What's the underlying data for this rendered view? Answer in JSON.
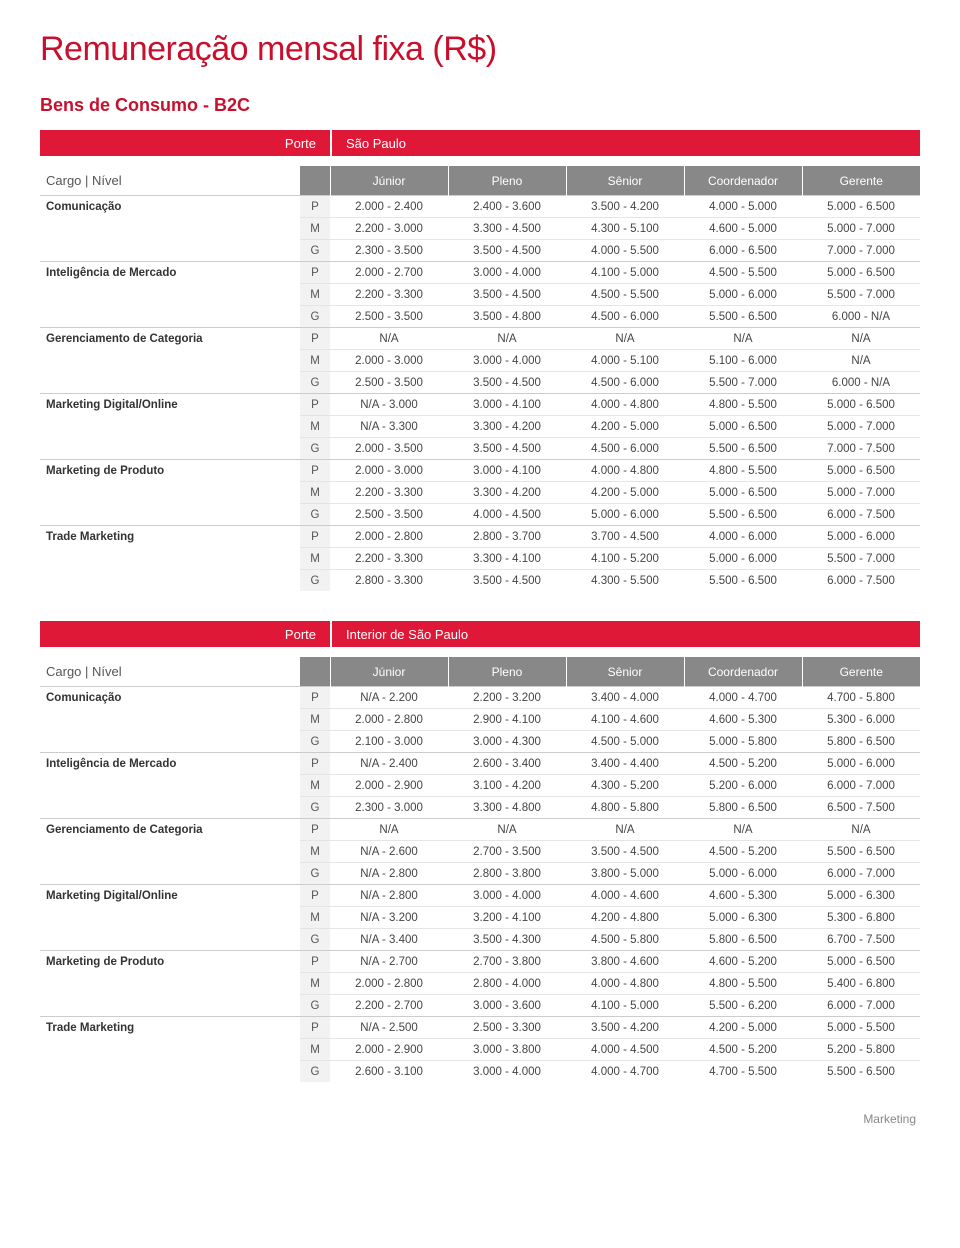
{
  "title": "Remuneração mensal fixa (R$)",
  "subtitle": "Bens de Consumo - B2C",
  "porte_label": "Porte",
  "cargo_nivel_label": "Cargo | Nível",
  "levels": [
    "Júnior",
    "Pleno",
    "Sênior",
    "Coordenador",
    "Gerente"
  ],
  "sizes": [
    "P",
    "M",
    "G"
  ],
  "footer": "Marketing",
  "colors": {
    "accent": "#c8102e",
    "bar": "#e01837",
    "header_bg": "#888888",
    "header_fg": "#ffffff",
    "size_bg": "#f2f2f2",
    "border": "#e5e5e5",
    "group_border": "#cccccc"
  },
  "tables": [
    {
      "region": "São Paulo",
      "cargos": [
        {
          "name": "Comunicação",
          "rows": [
            [
              "2.000 - 2.400",
              "2.400 - 3.600",
              "3.500 - 4.200",
              "4.000 - 5.000",
              "5.000 - 6.500"
            ],
            [
              "2.200 - 3.000",
              "3.300 - 4.500",
              "4.300 - 5.100",
              "4.600 - 5.000",
              "5.000 - 7.000"
            ],
            [
              "2.300 - 3.500",
              "3.500 - 4.500",
              "4.000 - 5.500",
              "6.000 - 6.500",
              "7.000 - 7.000"
            ]
          ]
        },
        {
          "name": "Inteligência de Mercado",
          "rows": [
            [
              "2.000 - 2.700",
              "3.000 - 4.000",
              "4.100 - 5.000",
              "4.500 - 5.500",
              "5.000 - 6.500"
            ],
            [
              "2.200 - 3.300",
              "3.500 - 4.500",
              "4.500 - 5.500",
              "5.000 - 6.000",
              "5.500 - 7.000"
            ],
            [
              "2.500 - 3.500",
              "3.500 - 4.800",
              "4.500 - 6.000",
              "5.500 - 6.500",
              "6.000 - N/A"
            ]
          ]
        },
        {
          "name": "Gerenciamento de Categoria",
          "rows": [
            [
              "N/A",
              "N/A",
              "N/A",
              "N/A",
              "N/A"
            ],
            [
              "2.000 - 3.000",
              "3.000 - 4.000",
              "4.000 - 5.100",
              "5.100 - 6.000",
              "N/A"
            ],
            [
              "2.500 - 3.500",
              "3.500 - 4.500",
              "4.500 - 6.000",
              "5.500 - 7.000",
              "6.000 - N/A"
            ]
          ]
        },
        {
          "name": "Marketing Digital/Online",
          "rows": [
            [
              "N/A - 3.000",
              "3.000 - 4.100",
              "4.000 - 4.800",
              "4.800 - 5.500",
              "5.000 - 6.500"
            ],
            [
              "N/A - 3.300",
              "3.300 - 4.200",
              "4.200 - 5.000",
              "5.000 - 6.500",
              "5.000 - 7.000"
            ],
            [
              "2.000 - 3.500",
              "3.500 - 4.500",
              "4.500 - 6.000",
              "5.500 - 6.500",
              "7.000 - 7.500"
            ]
          ]
        },
        {
          "name": "Marketing de Produto",
          "rows": [
            [
              "2.000 - 3.000",
              "3.000 - 4.100",
              "4.000 - 4.800",
              "4.800 - 5.500",
              "5.000 - 6.500"
            ],
            [
              "2.200 - 3.300",
              "3.300 - 4.200",
              "4.200 - 5.000",
              "5.000 - 6.500",
              "5.000 - 7.000"
            ],
            [
              "2.500 - 3.500",
              "4.000 - 4.500",
              "5.000 - 6.000",
              "5.500 - 6.500",
              "6.000 - 7.500"
            ]
          ]
        },
        {
          "name": "Trade Marketing",
          "rows": [
            [
              "2.000 - 2.800",
              "2.800 - 3.700",
              "3.700 - 4.500",
              "4.000 - 6.000",
              "5.000 - 6.000"
            ],
            [
              "2.200 - 3.300",
              "3.300 - 4.100",
              "4.100 - 5.200",
              "5.000 - 6.000",
              "5.500 - 7.000"
            ],
            [
              "2.800 - 3.300",
              "3.500 - 4.500",
              "4.300 - 5.500",
              "5.500 - 6.500",
              "6.000 - 7.500"
            ]
          ]
        }
      ]
    },
    {
      "region": "Interior de São Paulo",
      "cargos": [
        {
          "name": "Comunicação",
          "rows": [
            [
              "N/A - 2.200",
              "2.200 - 3.200",
              "3.400 - 4.000",
              "4.000 - 4.700",
              "4.700 - 5.800"
            ],
            [
              "2.000 - 2.800",
              "2.900 - 4.100",
              "4.100 - 4.600",
              "4.600 - 5.300",
              "5.300 - 6.000"
            ],
            [
              "2.100 - 3.000",
              "3.000 - 4.300",
              "4.500 - 5.000",
              "5.000 - 5.800",
              "5.800 - 6.500"
            ]
          ]
        },
        {
          "name": "Inteligência de Mercado",
          "rows": [
            [
              "N/A - 2.400",
              "2.600 - 3.400",
              "3.400 - 4.400",
              "4.500 - 5.200",
              "5.000 - 6.000"
            ],
            [
              "2.000 - 2.900",
              "3.100 - 4.200",
              "4.300 - 5.200",
              "5.200 - 6.000",
              "6.000 - 7.000"
            ],
            [
              "2.300 - 3.000",
              "3.300 - 4.800",
              "4.800 - 5.800",
              "5.800 - 6.500",
              "6.500 - 7.500"
            ]
          ]
        },
        {
          "name": "Gerenciamento de Categoria",
          "rows": [
            [
              "N/A",
              "N/A",
              "N/A",
              "N/A",
              "N/A"
            ],
            [
              "N/A - 2.600",
              "2.700 - 3.500",
              "3.500 - 4.500",
              "4.500 - 5.200",
              "5.500 - 6.500"
            ],
            [
              "N/A - 2.800",
              "2.800 - 3.800",
              "3.800 - 5.000",
              "5.000 - 6.000",
              "6.000 - 7.000"
            ]
          ]
        },
        {
          "name": "Marketing Digital/Online",
          "rows": [
            [
              "N/A - 2.800",
              "3.000 - 4.000",
              "4.000 - 4.600",
              "4.600 - 5.300",
              "5.000 - 6.300"
            ],
            [
              "N/A - 3.200",
              "3.200 - 4.100",
              "4.200 - 4.800",
              "5.000 - 6.300",
              "5.300 - 6.800"
            ],
            [
              "N/A - 3.400",
              "3.500 - 4.300",
              "4.500 - 5.800",
              "5.800 - 6.500",
              "6.700 - 7.500"
            ]
          ]
        },
        {
          "name": "Marketing de Produto",
          "rows": [
            [
              "N/A - 2.700",
              "2.700 - 3.800",
              "3.800 - 4.600",
              "4.600 - 5.200",
              "5.000 - 6.500"
            ],
            [
              "2.000 - 2.800",
              "2.800 - 4.000",
              "4.000 - 4.800",
              "4.800 - 5.500",
              "5.400 - 6.800"
            ],
            [
              "2.200 - 2.700",
              "3.000 - 3.600",
              "4.100 - 5.000",
              "5.500 - 6.200",
              "6.000 - 7.000"
            ]
          ]
        },
        {
          "name": "Trade Marketing",
          "rows": [
            [
              "N/A - 2.500",
              "2.500 - 3.300",
              "3.500 - 4.200",
              "4.200 - 5.000",
              "5.000 - 5.500"
            ],
            [
              "2.000 - 2.900",
              "3.000 - 3.800",
              "4.000 - 4.500",
              "4.500 - 5.200",
              "5.200 - 5.800"
            ],
            [
              "2.600 - 3.100",
              "3.000 - 4.000",
              "4.000 - 4.700",
              "4.700 - 5.500",
              "5.500 - 6.500"
            ]
          ]
        }
      ]
    }
  ]
}
